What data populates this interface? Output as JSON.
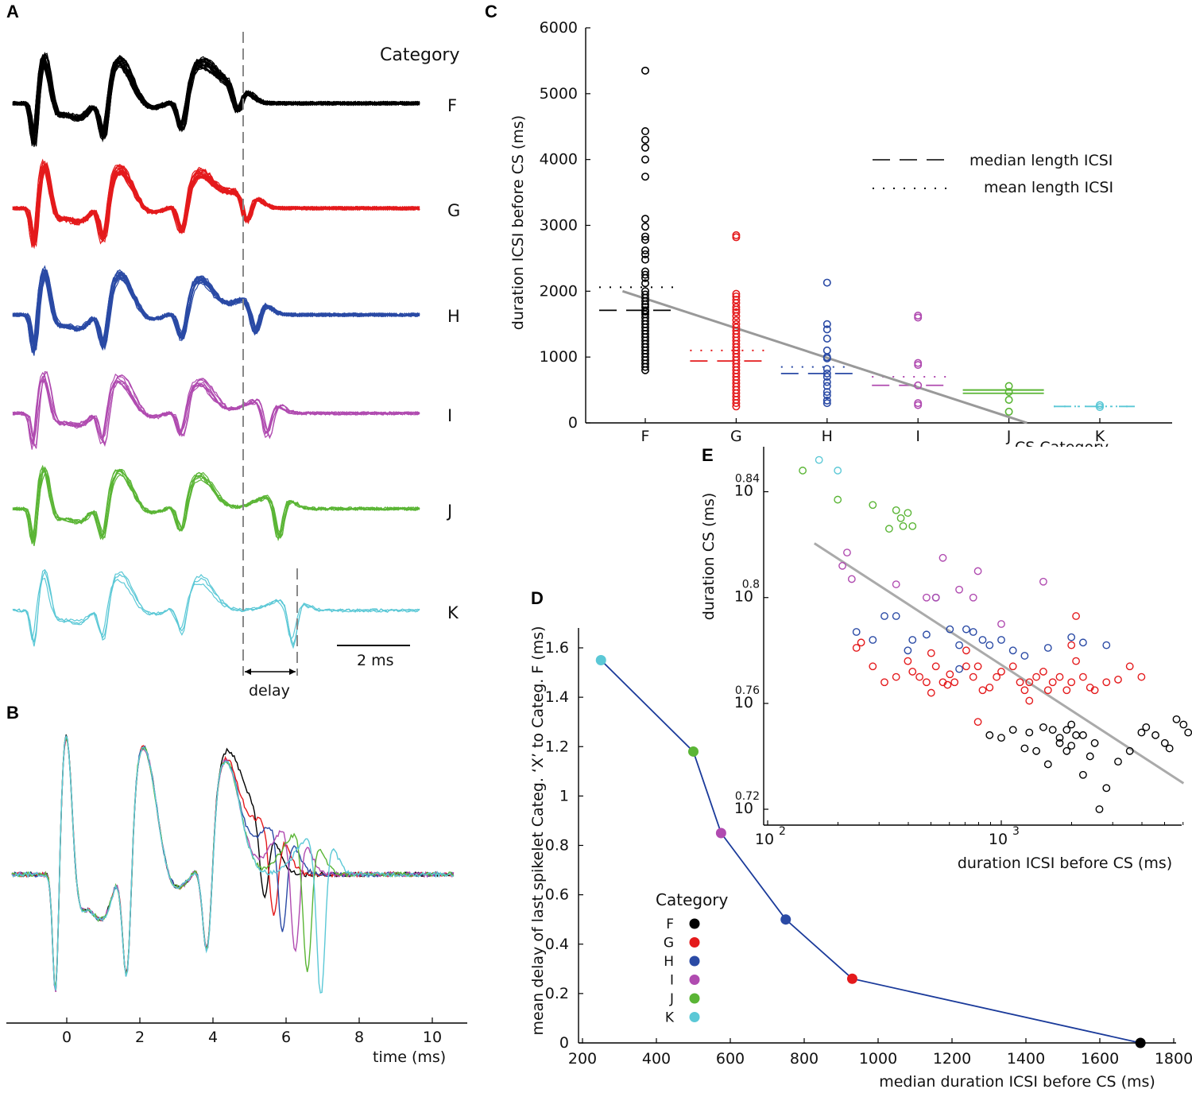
{
  "colors": {
    "F": "#000000",
    "G": "#e41a1c",
    "H": "#2a4aa5",
    "I": "#b04bb0",
    "J": "#5ab535",
    "K": "#5bc8d6",
    "trend": "#999999",
    "dash_guide": "#888888",
    "line_d": "#1a3a9a"
  },
  "panel_labels": {
    "a": "A",
    "b": "B",
    "c": "C",
    "d": "D",
    "e": "E"
  },
  "panel_a": {
    "header": "Category",
    "rows": [
      "F",
      "G",
      "H",
      "I",
      "J",
      "K"
    ],
    "scale_label": "2 ms",
    "delay_label": "delay",
    "trace_counts": [
      24,
      22,
      16,
      8,
      7,
      3
    ],
    "delays_ms": [
      0,
      0.26,
      0.5,
      0.85,
      1.18,
      1.55
    ]
  },
  "chart_data": [
    {
      "id": "B",
      "type": "line",
      "xlabel": "time (ms)",
      "x_ticks": [
        "0",
        "2",
        "4",
        "6",
        "8",
        "10"
      ],
      "xlim": [
        -1.7,
        10.6
      ],
      "series": [
        {
          "name": "F",
          "delay": 0
        },
        {
          "name": "G",
          "delay": 0.26
        },
        {
          "name": "H",
          "delay": 0.5
        },
        {
          "name": "I",
          "delay": 0.85
        },
        {
          "name": "J",
          "delay": 1.18
        },
        {
          "name": "K",
          "delay": 1.55
        }
      ]
    },
    {
      "id": "C",
      "type": "scatter",
      "ylabel": "duration ICSI before CS (ms)",
      "xlabel": "CS Category",
      "categories": [
        "F",
        "G",
        "H",
        "I",
        "J",
        "K"
      ],
      "y_ticks": [
        "0",
        "1000",
        "2000",
        "3000",
        "4000",
        "5000",
        "6000"
      ],
      "ylim": [
        0,
        6000
      ],
      "legend": {
        "median": "median length ICSI",
        "mean": "mean length ICSI",
        "position": "top-right"
      },
      "medians": [
        1710,
        940,
        750,
        570,
        450,
        250
      ],
      "means": [
        2060,
        1100,
        850,
        700,
        500,
        250
      ],
      "trend": {
        "from": [
          0.75,
          2000
        ],
        "to": [
          5.2,
          0
        ]
      },
      "points": {
        "F": [
          5350,
          4430,
          4300,
          4180,
          4000,
          3740,
          3100,
          2980,
          2830,
          2780,
          2620,
          2560,
          2480,
          2300,
          2250,
          2200,
          2120,
          2000,
          1950,
          1900,
          1850,
          1800,
          1760,
          1710,
          1690,
          1650,
          1600,
          1550,
          1500,
          1450,
          1400,
          1350,
          1300,
          1250,
          1200,
          1150,
          1100,
          1050,
          1000,
          950,
          900,
          850,
          800
        ],
        "G": [
          2850,
          2820,
          1960,
          1920,
          1870,
          1820,
          1760,
          1720,
          1680,
          1620,
          1560,
          1500,
          1450,
          1400,
          1350,
          1300,
          1250,
          1200,
          1150,
          1100,
          1050,
          1000,
          950,
          900,
          850,
          800,
          750,
          700,
          650,
          600,
          550,
          500,
          450,
          400,
          350,
          300,
          250
        ],
        "H": [
          2130,
          1500,
          1420,
          1280,
          1100,
          1000,
          980,
          820,
          750,
          700,
          620,
          560,
          470,
          420,
          340,
          300
        ],
        "I": [
          1630,
          1600,
          910,
          880,
          570,
          300,
          270
        ],
        "J": [
          560,
          470,
          350,
          170
        ],
        "K": [
          270,
          240
        ]
      }
    },
    {
      "id": "D",
      "type": "line",
      "ylabel": "mean delay of last spikelet Categ. ‘X’ to Categ. F (ms)",
      "xlabel": "median duration ICSI before CS (ms)",
      "x_ticks": [
        "200",
        "400",
        "600",
        "800",
        "1000",
        "1200",
        "1400",
        "1600",
        "1800"
      ],
      "y_ticks": [
        "0",
        "0.2",
        "0.4",
        "0.6",
        "0.8",
        "1",
        "1.2",
        "1.4",
        "1.6"
      ],
      "xlim": [
        200,
        1800
      ],
      "ylim": [
        0,
        1.6
      ],
      "legend_title": "Category",
      "legend_entries": [
        "F",
        "G",
        "H",
        "I",
        "J",
        "K"
      ],
      "points": [
        {
          "cat": "K",
          "x": 250,
          "y": 1.55
        },
        {
          "cat": "J",
          "x": 500,
          "y": 1.18
        },
        {
          "cat": "I",
          "x": 575,
          "y": 0.85
        },
        {
          "cat": "H",
          "x": 750,
          "y": 0.5
        },
        {
          "cat": "G",
          "x": 930,
          "y": 0.26
        },
        {
          "cat": "F",
          "x": 1710,
          "y": 0.0
        }
      ]
    },
    {
      "id": "E",
      "type": "scatter",
      "ylabel": "duration CS (ms)",
      "xlabel": "duration ICSI before CS (ms)",
      "x_ticks": [
        {
          "base": "10",
          "exp": "2"
        },
        {
          "base": "10",
          "exp": "3"
        }
      ],
      "y_ticks": [
        {
          "base": "10",
          "exp": "0.72"
        },
        {
          "base": "10",
          "exp": "0.76"
        },
        {
          "base": "10",
          "exp": "0.8"
        },
        {
          "base": "10",
          "exp": "0.84"
        }
      ],
      "x_scale": "log",
      "y_scale": "log",
      "xlim_log10": [
        2.0,
        3.8
      ],
      "ylim_log10": [
        0.714,
        0.857
      ],
      "trend": {
        "from": [
          2.2,
          0.8205
        ],
        "to": [
          3.78,
          0.7298
        ]
      },
      "points": {
        "F": [
          [
            3.0,
            0.747
          ],
          [
            3.05,
            0.75
          ],
          [
            3.12,
            0.749
          ],
          [
            3.15,
            0.742
          ],
          [
            3.2,
            0.737
          ],
          [
            3.22,
            0.75
          ],
          [
            3.25,
            0.747
          ],
          [
            3.25,
            0.745
          ],
          [
            3.28,
            0.75
          ],
          [
            3.3,
            0.752
          ],
          [
            3.32,
            0.748
          ],
          [
            3.35,
            0.733
          ],
          [
            3.38,
            0.74
          ],
          [
            3.4,
            0.745
          ],
          [
            3.45,
            0.728
          ],
          [
            3.5,
            0.738
          ],
          [
            3.55,
            0.742
          ],
          [
            3.6,
            0.749
          ],
          [
            3.62,
            0.751
          ],
          [
            3.66,
            0.748
          ],
          [
            3.7,
            0.745
          ],
          [
            3.72,
            0.743
          ],
          [
            3.75,
            0.754
          ],
          [
            3.78,
            0.752
          ],
          [
            3.8,
            0.749
          ],
          [
            3.35,
            0.748
          ],
          [
            3.28,
            0.742
          ],
          [
            3.42,
            0.72
          ],
          [
            3.3,
            0.744
          ],
          [
            2.95,
            0.748
          ],
          [
            3.1,
            0.743
          ],
          [
            3.18,
            0.751
          ]
        ],
        "G": [
          [
            2.38,
            0.781
          ],
          [
            2.45,
            0.774
          ],
          [
            2.5,
            0.768
          ],
          [
            2.55,
            0.77
          ],
          [
            2.6,
            0.776
          ],
          [
            2.62,
            0.772
          ],
          [
            2.65,
            0.77
          ],
          [
            2.68,
            0.768
          ],
          [
            2.7,
            0.779
          ],
          [
            2.72,
            0.774
          ],
          [
            2.75,
            0.768
          ],
          [
            2.78,
            0.771
          ],
          [
            2.8,
            0.768
          ],
          [
            2.85,
            0.774
          ],
          [
            2.88,
            0.77
          ],
          [
            2.9,
            0.774
          ],
          [
            2.92,
            0.765
          ],
          [
            2.95,
            0.766
          ],
          [
            2.98,
            0.77
          ],
          [
            3.0,
            0.772
          ],
          [
            3.05,
            0.774
          ],
          [
            3.08,
            0.768
          ],
          [
            3.1,
            0.765
          ],
          [
            3.12,
            0.768
          ],
          [
            3.15,
            0.77
          ],
          [
            3.18,
            0.772
          ],
          [
            3.2,
            0.765
          ],
          [
            3.22,
            0.768
          ],
          [
            3.25,
            0.77
          ],
          [
            3.28,
            0.765
          ],
          [
            3.3,
            0.768
          ],
          [
            3.32,
            0.776
          ],
          [
            3.35,
            0.77
          ],
          [
            3.38,
            0.766
          ],
          [
            3.4,
            0.765
          ],
          [
            3.45,
            0.768
          ],
          [
            3.5,
            0.769
          ],
          [
            3.55,
            0.774
          ],
          [
            3.6,
            0.77
          ],
          [
            3.32,
            0.793
          ],
          [
            2.9,
            0.753
          ],
          [
            2.85,
            0.78
          ],
          [
            3.12,
            0.761
          ],
          [
            3.3,
            0.782
          ],
          [
            2.7,
            0.764
          ],
          [
            2.77,
            0.767
          ],
          [
            2.4,
            0.783
          ]
        ],
        "H": [
          [
            2.38,
            0.787
          ],
          [
            2.45,
            0.784
          ],
          [
            2.5,
            0.793
          ],
          [
            2.55,
            0.793
          ],
          [
            2.62,
            0.784
          ],
          [
            2.68,
            0.786
          ],
          [
            2.72,
            0.8
          ],
          [
            2.78,
            0.788
          ],
          [
            2.82,
            0.782
          ],
          [
            2.85,
            0.788
          ],
          [
            2.88,
            0.787
          ],
          [
            2.92,
            0.784
          ],
          [
            2.95,
            0.782
          ],
          [
            3.0,
            0.784
          ],
          [
            3.05,
            0.78
          ],
          [
            3.1,
            0.778
          ],
          [
            3.2,
            0.781
          ],
          [
            3.3,
            0.785
          ],
          [
            3.35,
            0.783
          ],
          [
            3.45,
            0.782
          ],
          [
            2.6,
            0.78
          ],
          [
            2.82,
            0.773
          ]
        ],
        "I": [
          [
            2.32,
            0.812
          ],
          [
            2.36,
            0.807
          ],
          [
            2.34,
            0.817
          ],
          [
            2.55,
            0.805
          ],
          [
            2.68,
            0.8
          ],
          [
            2.72,
            0.8
          ],
          [
            2.82,
            0.803
          ],
          [
            2.88,
            0.8
          ],
          [
            3.18,
            0.806
          ],
          [
            2.9,
            0.81
          ],
          [
            3.0,
            0.79
          ],
          [
            2.75,
            0.815
          ]
        ],
        "J": [
          [
            2.15,
            0.848
          ],
          [
            2.3,
            0.837
          ],
          [
            2.45,
            0.835
          ],
          [
            2.55,
            0.833
          ],
          [
            2.57,
            0.83
          ],
          [
            2.6,
            0.832
          ],
          [
            2.62,
            0.827
          ],
          [
            2.58,
            0.827
          ],
          [
            2.52,
            0.826
          ]
        ],
        "K": [
          [
            2.22,
            0.852
          ],
          [
            2.3,
            0.848
          ]
        ]
      }
    }
  ]
}
